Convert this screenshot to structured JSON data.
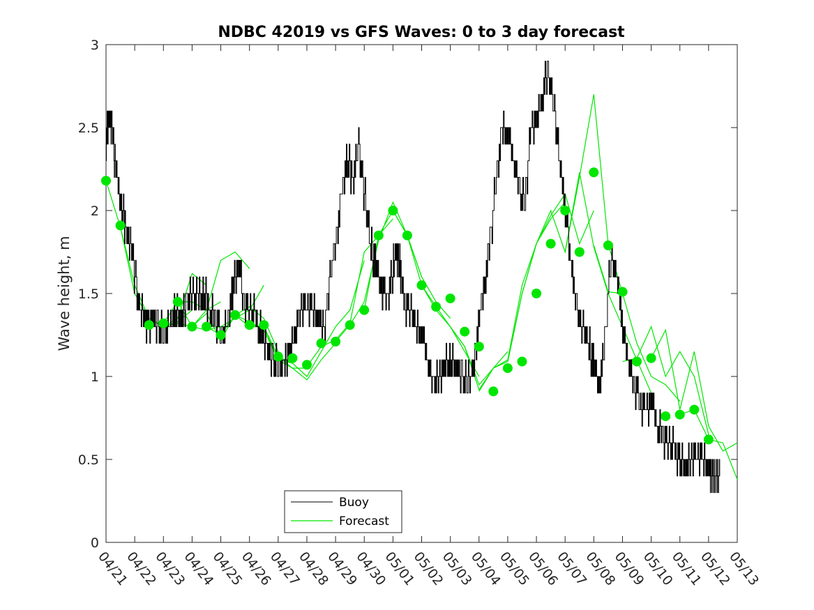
{
  "chart_data": {
    "type": "line",
    "title": "NDBC 42019 vs GFS Waves: 0 to 3 day forecast",
    "xlabel": "",
    "ylabel": "Wave height, m",
    "ylim": [
      0,
      3
    ],
    "yticks": [
      "0",
      "0.5",
      "1",
      "1.5",
      "2",
      "2.5",
      "3"
    ],
    "xlim": [
      0,
      22
    ],
    "xticks": [
      "04/21",
      "04/22",
      "04/23",
      "04/24",
      "04/25",
      "04/26",
      "04/27",
      "04/28",
      "04/29",
      "04/30",
      "05/01",
      "05/02",
      "05/03",
      "05/04",
      "05/05",
      "05/06",
      "05/07",
      "05/08",
      "05/09",
      "05/10",
      "05/11",
      "05/12",
      "05/13"
    ],
    "grid": false,
    "legend": {
      "location": "bottom-center",
      "entries": [
        "Buoy",
        "Forecast"
      ]
    },
    "colors": {
      "buoy": "#000000",
      "forecast": "#00e600",
      "points": "#00e600"
    },
    "series": [
      {
        "name": "Buoy",
        "x": [
          0,
          0.1,
          0.2,
          0.3,
          0.4,
          0.55,
          0.7,
          0.85,
          1.0,
          1.2,
          1.4,
          1.6,
          1.8,
          2.0,
          2.2,
          2.4,
          2.6,
          2.8,
          3.0,
          3.2,
          3.4,
          3.6,
          3.8,
          4.0,
          4.2,
          4.4,
          4.6,
          4.8,
          5.0,
          5.2,
          5.4,
          5.6,
          5.8,
          6.0,
          6.2,
          6.4,
          6.6,
          6.8,
          7.0,
          7.2,
          7.4,
          7.6,
          7.8,
          8.0,
          8.2,
          8.4,
          8.6,
          8.8,
          9.0,
          9.2,
          9.4,
          9.6,
          9.8,
          10.0,
          10.1,
          10.2,
          10.3,
          10.4,
          10.6,
          10.8,
          11.0,
          11.2,
          11.4,
          11.6,
          11.8,
          12.0,
          12.2,
          12.4,
          12.6,
          12.8,
          13.0,
          13.2,
          13.4,
          13.6,
          13.8,
          14.0,
          14.2,
          14.4,
          14.6,
          14.8,
          15.0,
          15.2,
          15.4,
          15.6,
          15.8,
          16.0,
          16.2,
          16.4,
          16.6,
          16.8,
          17.0,
          17.2,
          17.4,
          17.6,
          17.8,
          18.0,
          18.2,
          18.4,
          18.6,
          18.8,
          19.0,
          19.2,
          19.4,
          19.6,
          19.8,
          20.0,
          20.2,
          20.4,
          20.6,
          20.8,
          21.0,
          21.1,
          21.2,
          21.3
        ],
        "values": [
          2.4,
          2.6,
          2.5,
          2.3,
          2.2,
          2.0,
          1.9,
          1.8,
          1.6,
          1.4,
          1.3,
          1.35,
          1.3,
          1.25,
          1.3,
          1.4,
          1.35,
          1.45,
          1.5,
          1.45,
          1.5,
          1.4,
          1.35,
          1.25,
          1.3,
          1.5,
          1.7,
          1.45,
          1.4,
          1.35,
          1.25,
          1.2,
          1.1,
          1.05,
          1.05,
          1.15,
          1.3,
          1.4,
          1.45,
          1.4,
          1.35,
          1.3,
          1.6,
          1.8,
          2.1,
          2.3,
          2.2,
          2.4,
          2.1,
          1.8,
          1.65,
          1.55,
          1.45,
          1.65,
          1.75,
          1.7,
          1.6,
          1.45,
          1.4,
          1.3,
          1.25,
          1.1,
          0.95,
          1.0,
          1.05,
          1.1,
          1.05,
          1.0,
          0.95,
          1.05,
          1.35,
          1.6,
          1.85,
          2.2,
          2.5,
          2.45,
          2.3,
          2.1,
          2.05,
          2.5,
          2.55,
          2.7,
          2.85,
          2.65,
          2.3,
          2.0,
          1.7,
          1.4,
          1.3,
          1.2,
          1.05,
          0.95,
          1.25,
          1.75,
          1.6,
          1.3,
          1.1,
          0.95,
          0.85,
          0.8,
          0.85,
          0.7,
          0.65,
          0.6,
          0.55,
          0.5,
          0.45,
          0.5,
          0.55,
          0.5,
          0.45,
          0.42,
          0.4,
          0.4
        ]
      },
      {
        "name": "Forecast",
        "runs": [
          {
            "x": [
              0,
              0.5,
              1,
              1.5,
              2,
              2.5,
              3
            ],
            "values": [
              2.18,
              1.9,
              1.55,
              1.35,
              1.3,
              1.33,
              1.4
            ]
          },
          {
            "x": [
              0.5,
              1,
              1.5,
              2,
              2.5,
              3,
              3.5
            ],
            "values": [
              1.9,
              1.5,
              1.35,
              1.3,
              1.35,
              1.62,
              1.55
            ]
          },
          {
            "x": [
              1,
              1.5,
              2,
              2.5,
              3,
              3.5,
              4
            ],
            "values": [
              1.5,
              1.35,
              1.3,
              1.32,
              1.3,
              1.4,
              1.45
            ]
          },
          {
            "x": [
              2,
              2.5,
              3,
              3.5,
              4,
              4.5,
              5
            ],
            "values": [
              1.32,
              1.45,
              1.45,
              1.4,
              1.7,
              1.75,
              1.65
            ]
          },
          {
            "x": [
              2.5,
              3,
              3.5,
              4,
              4.5,
              5,
              5.5
            ],
            "values": [
              1.45,
              1.3,
              1.28,
              1.3,
              1.35,
              1.4,
              1.55
            ]
          },
          {
            "x": [
              3,
              3.5,
              4,
              4.5,
              5,
              5.5,
              6
            ],
            "values": [
              1.3,
              1.38,
              1.22,
              1.37,
              1.42,
              1.35,
              1.15
            ]
          },
          {
            "x": [
              3.5,
              4,
              4.5,
              5,
              5.5,
              6,
              6.5
            ],
            "values": [
              1.3,
              1.25,
              1.37,
              1.33,
              1.28,
              1.1,
              1.08
            ]
          },
          {
            "x": [
              4,
              4.5,
              5,
              5.5,
              6,
              6.5,
              7
            ],
            "values": [
              1.25,
              1.37,
              1.3,
              1.3,
              1.1,
              1.05,
              1.05
            ]
          },
          {
            "x": [
              5,
              5.5,
              6,
              6.5,
              7,
              7.5,
              8
            ],
            "values": [
              1.31,
              1.3,
              1.12,
              1.05,
              0.98,
              1.1,
              1.2
            ]
          },
          {
            "x": [
              6,
              6.5,
              7,
              7.5,
              8,
              8.5,
              9
            ],
            "values": [
              1.12,
              1.08,
              1.0,
              1.15,
              1.3,
              1.4,
              1.7
            ]
          },
          {
            "x": [
              7,
              7.5,
              8,
              8.5,
              9,
              9.5,
              10
            ],
            "values": [
              1.06,
              1.18,
              1.22,
              1.32,
              1.75,
              1.85,
              1.95
            ]
          },
          {
            "x": [
              8,
              8.5,
              9,
              9.5,
              10,
              10.5,
              11
            ],
            "values": [
              1.21,
              1.31,
              1.45,
              1.82,
              2.05,
              1.85,
              1.6
            ]
          },
          {
            "x": [
              9,
              9.5,
              10,
              10.5,
              11,
              11.5,
              12
            ],
            "values": [
              1.4,
              1.85,
              2.0,
              1.85,
              1.6,
              1.45,
              1.35
            ]
          },
          {
            "x": [
              10,
              10.5,
              11,
              11.5,
              12,
              12.5,
              13
            ],
            "values": [
              2.0,
              1.85,
              1.55,
              1.42,
              1.3,
              1.15,
              1.0
            ]
          },
          {
            "x": [
              11,
              11.5,
              12,
              12.5,
              13,
              13.5,
              14
            ],
            "values": [
              1.55,
              1.4,
              1.3,
              1.18,
              0.95,
              1.05,
              1.15
            ]
          },
          {
            "x": [
              12,
              12.5,
              13,
              13.5,
              14,
              14.5,
              15
            ],
            "values": [
              1.3,
              1.18,
              0.92,
              1.05,
              1.1,
              1.55,
              1.8
            ]
          },
          {
            "x": [
              13,
              13.5,
              14,
              14.5,
              15,
              15.5,
              16
            ],
            "values": [
              0.91,
              1.05,
              1.09,
              1.5,
              1.8,
              1.95,
              2.05
            ]
          },
          {
            "x": [
              14,
              14.5,
              15,
              15.5,
              16,
              16.5,
              17
            ],
            "values": [
              1.09,
              1.5,
              1.8,
              1.97,
              2.1,
              1.8,
              2.0
            ]
          },
          {
            "x": [
              15,
              15.5,
              16,
              16.5,
              17,
              17.5,
              18
            ],
            "values": [
              1.8,
              2.0,
              1.75,
              2.2,
              2.7,
              1.8,
              1.5
            ]
          },
          {
            "x": [
              16,
              16.5,
              17,
              17.5,
              18,
              18.5,
              19
            ],
            "values": [
              1.75,
              2.23,
              1.78,
              1.5,
              1.3,
              1.1,
              0.9
            ]
          },
          {
            "x": [
              17,
              17.5,
              18,
              18.5,
              19,
              19.5,
              20
            ],
            "values": [
              1.79,
              1.51,
              1.5,
              1.2,
              1.0,
              0.95,
              0.85
            ]
          },
          {
            "x": [
              18,
              18.5,
              19,
              19.5,
              20,
              20.5,
              21
            ],
            "values": [
              1.09,
              1.11,
              1.3,
              1.0,
              1.15,
              1.0,
              0.65
            ]
          },
          {
            "x": [
              19,
              19.5,
              20,
              20.5,
              21,
              21.5,
              22
            ],
            "values": [
              1.11,
              1.28,
              0.8,
              1.15,
              0.7,
              0.55,
              0.6
            ]
          },
          {
            "x": [
              20,
              20.5,
              21,
              21.5,
              22
            ],
            "values": [
              0.77,
              0.8,
              0.62,
              0.6,
              0.38
            ]
          }
        ]
      }
    ],
    "points": {
      "x": [
        0,
        0.5,
        1.5,
        2,
        2.5,
        3,
        3.5,
        4,
        4.5,
        5,
        5.5,
        6,
        6.5,
        7,
        7.5,
        8,
        8.5,
        9,
        9.5,
        10,
        10.5,
        11,
        11.5,
        12,
        12.5,
        13,
        13.5,
        14,
        14.5,
        15,
        15.5,
        16,
        16.5,
        17,
        17.5,
        18,
        18.5,
        19,
        19.5,
        20,
        20.5,
        21
      ],
      "values": [
        2.18,
        1.91,
        1.31,
        1.32,
        1.45,
        1.3,
        1.3,
        1.25,
        1.37,
        1.31,
        1.31,
        1.12,
        1.11,
        1.07,
        1.2,
        1.21,
        1.31,
        1.4,
        1.85,
        2.0,
        1.85,
        1.55,
        1.42,
        1.47,
        1.27,
        1.18,
        0.91,
        1.05,
        1.09,
        1.5,
        1.8,
        2.0,
        1.75,
        2.23,
        1.79,
        1.51,
        1.09,
        1.11,
        0.76,
        0.77,
        0.8,
        0.62
      ]
    }
  }
}
